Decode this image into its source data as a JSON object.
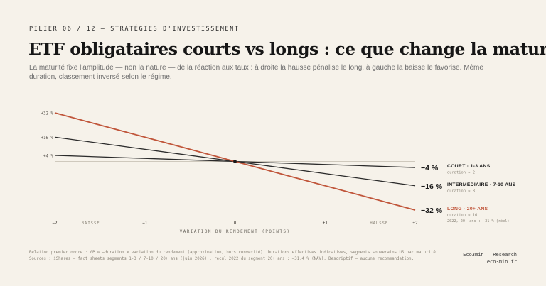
{
  "header": {
    "kicker": "PILIER 06 / 12 — STRATÉGIES D'INVESTISSEMENT",
    "title": "ETF obligataires courts vs longs : ce que change la maturité",
    "subtitle": "La maturité fixe l'amplitude — non la nature — de la réaction aux taux : à droite la hausse pénalise le long, à gauche la baisse le favorise. Même duration, classement inversé selon le régime."
  },
  "chart_data": {
    "type": "line",
    "xlabel": "VARIATION DU RENDEMENT (POINTS)",
    "ylabel": "",
    "xlim": [
      -2,
      2
    ],
    "ylim": [
      -32,
      32
    ],
    "x_ticks": [
      "−2",
      "−1",
      "0",
      "+1",
      "+2"
    ],
    "y_ticks": [
      "+32 %",
      "+16 %",
      "+4 %"
    ],
    "region_labels": {
      "left": "BAISSE",
      "right": "HAUSSE"
    },
    "grid": false,
    "legend": "direct-labels-right",
    "series": [
      {
        "name": "COURT · 1-3 ANS",
        "duration_label": "duration ≈ 2",
        "end_label": "−4 %",
        "x": [
          -2,
          0,
          2
        ],
        "y": [
          4,
          0,
          -4
        ],
        "color": "#2b2b2b"
      },
      {
        "name": "INTERMÉDIAIRE · 7-10 ANS",
        "duration_label": "duration ≈ 8",
        "end_label": "−16 %",
        "x": [
          -2,
          0,
          2
        ],
        "y": [
          16,
          0,
          -16
        ],
        "color": "#2b2b2b"
      },
      {
        "name": "LONG · 20+ ANS",
        "duration_label": "duration ≈ 16",
        "end_label": "−32 %",
        "note": "2022, 20+ ans : −31 % (réel)",
        "x": [
          -2,
          0,
          2
        ],
        "y": [
          32,
          0,
          -32
        ],
        "color": "#c0553a"
      }
    ]
  },
  "footer": {
    "line1": "Relation premier ordre : ΔP ≈ −duration × variation du rendement (approximation, hors convexité). Durations effectives indicatives, segments souverains US par maturité.",
    "line2": "Sources : iShares — fact sheets segments 1-3 / 7-10 / 20+ ans (juin 2026) ; recul 2022 du segment 20+ ans : −31,4 % (NAV). Descriptif — aucune recommandation."
  },
  "brand": {
    "name": "Eco3min — Research",
    "url": "eco3min.fr"
  }
}
